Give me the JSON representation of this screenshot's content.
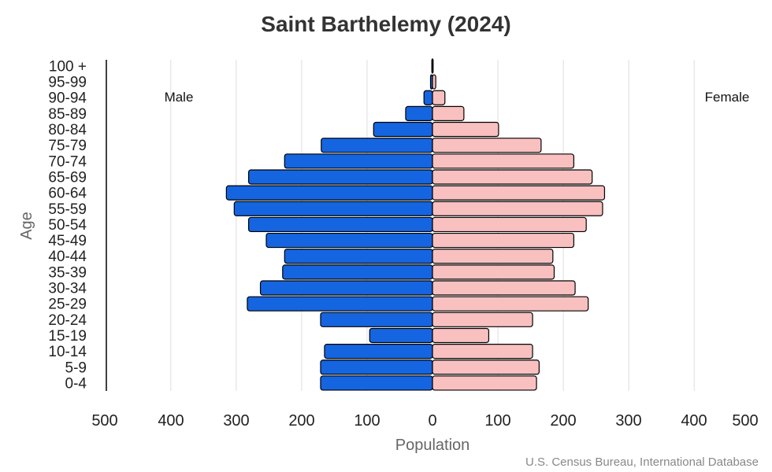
{
  "chart_data": {
    "type": "bar",
    "orientation": "horizontal-pyramid",
    "title": "Saint Barthelemy (2024)",
    "xlabel": "Population",
    "ylabel": "Age",
    "categories": [
      "0-4",
      "5-9",
      "10-14",
      "15-19",
      "20-24",
      "25-29",
      "30-34",
      "35-39",
      "40-44",
      "45-49",
      "50-54",
      "55-59",
      "60-64",
      "65-69",
      "70-74",
      "75-79",
      "80-84",
      "85-89",
      "90-94",
      "95-99",
      "100 +"
    ],
    "series": [
      {
        "name": "Male",
        "color": "#1565e0",
        "values": [
          171,
          171,
          165,
          96,
          171,
          283,
          263,
          229,
          226,
          254,
          281,
          303,
          315,
          281,
          226,
          170,
          90,
          41,
          13,
          3,
          1
        ]
      },
      {
        "name": "Female",
        "color": "#f9c0c0",
        "values": [
          159,
          163,
          153,
          86,
          153,
          238,
          218,
          186,
          184,
          216,
          235,
          260,
          263,
          244,
          216,
          166,
          101,
          48,
          19,
          5,
          1
        ]
      }
    ],
    "xlim": [
      -500,
      500
    ],
    "x_ticks": [
      "500",
      "400",
      "300",
      "200",
      "100",
      "0",
      "100",
      "200",
      "300",
      "400",
      "500"
    ],
    "grid": true,
    "legend": "side labels inside plot"
  },
  "labels": {
    "male": "Male",
    "female": "Female"
  },
  "source": "U.S. Census Bureau, International Database"
}
